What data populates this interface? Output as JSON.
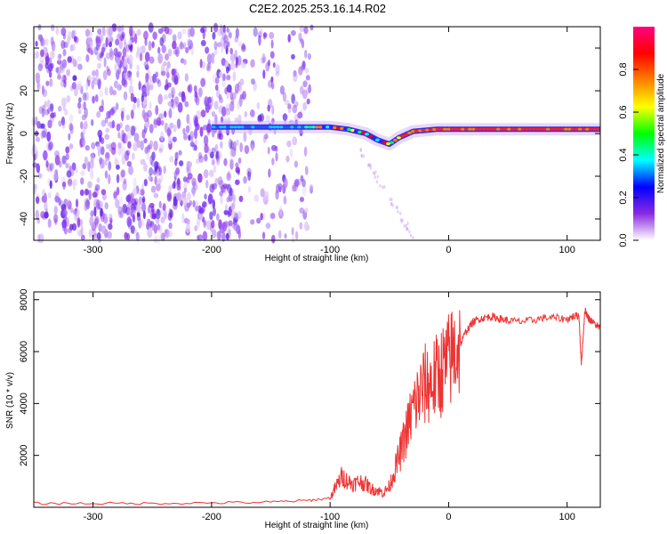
{
  "title": "C2E2.2025.253.16.14.R02",
  "chart_data": [
    {
      "type": "heatmap",
      "panel": "spectrogram",
      "xlabel": "Height of straight line (km)",
      "ylabel": "Frequency (Hz)",
      "xlim": [
        -350,
        128
      ],
      "ylim": [
        -50,
        50
      ],
      "xticks": [
        -300,
        -200,
        -100,
        0,
        100
      ],
      "yticks": [
        -40,
        -20,
        0,
        20,
        40
      ],
      "noise_region": {
        "x_start": -350,
        "x_end": -115
      },
      "signal_band": {
        "x": [
          -200,
          -150,
          -120,
          -100,
          -85,
          -70,
          -60,
          -50,
          -42,
          -30,
          -10,
          20,
          60,
          100,
          128
        ],
        "freq": [
          3,
          3,
          3,
          3,
          2,
          0,
          -3,
          -5,
          -2,
          1,
          2,
          2,
          2,
          2,
          2
        ]
      },
      "colorbar": {
        "label": "Normalized spectral amplitude",
        "ticks": [
          0.0,
          0.2,
          0.4,
          0.6,
          0.8
        ],
        "tick_labels": [
          "0.0",
          "0.2",
          "0.4",
          "0.6",
          "0.8"
        ],
        "colors": [
          "#ffffff",
          "#8a2be2",
          "#0000ff",
          "#00ffff",
          "#00ff00",
          "#ffff00",
          "#ff8000",
          "#ff0000",
          "#ff0080"
        ]
      }
    },
    {
      "type": "line",
      "panel": "snr",
      "xlabel": "Height of straight line (km)",
      "ylabel": "SNR (10 * v/v)",
      "xlim": [
        -350,
        128
      ],
      "ylim": [
        0,
        8300
      ],
      "xticks": [
        -300,
        -200,
        -100,
        0,
        100
      ],
      "yticks": [
        2000,
        4000,
        6000,
        8000
      ],
      "series": [
        {
          "name": "SNR",
          "color": "#ee3333",
          "x": [
            -350,
            -300,
            -250,
            -200,
            -150,
            -120,
            -100,
            -95,
            -90,
            -85,
            -80,
            -75,
            -70,
            -65,
            -60,
            -55,
            -50,
            -45,
            -40,
            -35,
            -30,
            -25,
            -20,
            -15,
            -10,
            -5,
            0,
            5,
            10,
            15,
            20,
            25,
            30,
            35,
            40,
            45,
            50,
            60,
            70,
            80,
            90,
            100,
            105,
            110,
            112,
            115,
            118,
            120,
            125,
            128
          ],
          "y": [
            150,
            150,
            150,
            170,
            200,
            260,
            350,
            800,
            1200,
            1000,
            900,
            1000,
            900,
            700,
            650,
            550,
            800,
            1500,
            2200,
            3000,
            3800,
            4300,
            4700,
            4800,
            5000,
            5300,
            5600,
            6000,
            6300,
            6800,
            7100,
            7250,
            7300,
            7350,
            7300,
            7250,
            7200,
            7150,
            7200,
            7300,
            7300,
            7250,
            7350,
            7400,
            5500,
            7600,
            7300,
            7200,
            7000,
            6900
          ]
        }
      ]
    }
  ]
}
